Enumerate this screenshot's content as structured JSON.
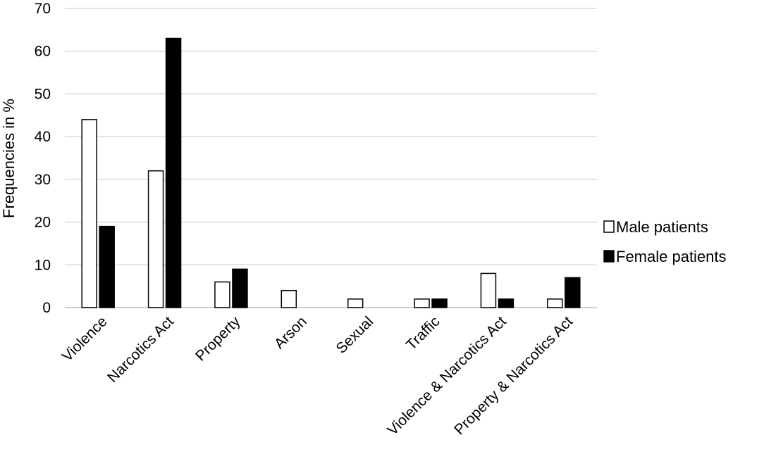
{
  "chart_data": {
    "type": "bar",
    "title": "",
    "xlabel": "",
    "ylabel": "Frequencies in %",
    "ylim": [
      0,
      70
    ],
    "yticks": [
      0,
      10,
      20,
      30,
      40,
      50,
      60,
      70
    ],
    "grid": true,
    "legend_position": "right",
    "categories": [
      "Violence",
      "Narcotics Act",
      "Property",
      "Arson",
      "Sexual",
      "Traffic",
      "Violence & Narcotics Act",
      "Property & Narcotics Act"
    ],
    "series": [
      {
        "name": "Male patients",
        "values": [
          44,
          32,
          6,
          4,
          2,
          2,
          8,
          2
        ],
        "fill": "#ffffff",
        "stroke": "#000000"
      },
      {
        "name": "Female patients",
        "values": [
          19,
          63,
          9,
          0,
          0,
          2,
          2,
          7
        ],
        "fill": "#000000",
        "stroke": "#000000"
      }
    ]
  }
}
